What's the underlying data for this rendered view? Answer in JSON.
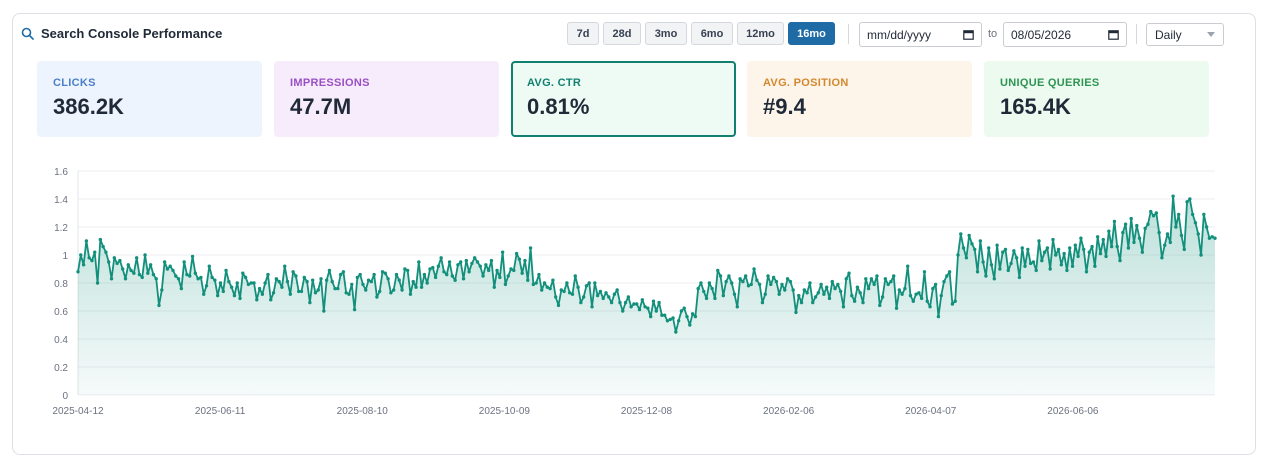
{
  "header": {
    "title": "Search Console Performance",
    "icon": "search-icon"
  },
  "ranges": [
    {
      "label": "7d",
      "active": false
    },
    {
      "label": "28d",
      "active": false
    },
    {
      "label": "3mo",
      "active": false
    },
    {
      "label": "6mo",
      "active": false
    },
    {
      "label": "12mo",
      "active": false
    },
    {
      "label": "16mo",
      "active": true
    }
  ],
  "date_from": {
    "placeholder": "mm/dd/yyyy"
  },
  "date_to_label": "to",
  "date_to": {
    "value": "08/05/2026"
  },
  "granularity": {
    "selected": "Daily"
  },
  "metrics": [
    {
      "label": "CLICKS",
      "value": "386.2K",
      "bg": "#eef4fd",
      "color": "#4a7fcb",
      "selected": false
    },
    {
      "label": "IMPRESSIONS",
      "value": "47.7M",
      "bg": "#f6ecfb",
      "color": "#9b4fc4",
      "selected": false
    },
    {
      "label": "AVG. CTR",
      "value": "0.81%",
      "bg": "#eefaf4",
      "color": "#12806f",
      "selected": true
    },
    {
      "label": "AVG. POSITION",
      "value": "#9.4",
      "bg": "#fdf4ea",
      "color": "#d2882d",
      "selected": false
    },
    {
      "label": "UNIQUE QUERIES",
      "value": "165.4K",
      "bg": "#ecfaf0",
      "color": "#2f9452",
      "selected": false
    }
  ],
  "chart_data": {
    "type": "area",
    "title": "",
    "xlabel": "",
    "ylabel": "",
    "x_start": "2025-04-12",
    "x_end": "2026-08-05",
    "ylim": [
      0,
      1.6
    ],
    "yticks": [
      0,
      0.2,
      0.4,
      0.6,
      0.8,
      1.0,
      1.2,
      1.4,
      1.6
    ],
    "ytick_labels": [
      "0",
      "0.2",
      "0.4",
      "0.6",
      "0.8",
      "1",
      "1.2",
      "1.4",
      "1.6"
    ],
    "xtick_labels": [
      "2025-04-12",
      "2025-06-11",
      "2025-08-10",
      "2025-10-09",
      "2025-12-08",
      "2026-02-06",
      "2026-04-07",
      "2026-06-06"
    ],
    "grid": true,
    "color": "#12907c",
    "values": [
      0.88,
      1.0,
      0.93,
      1.1,
      0.98,
      0.96,
      1.02,
      0.8,
      1.11,
      1.06,
      1.02,
      0.95,
      0.83,
      0.98,
      0.94,
      0.96,
      0.9,
      0.83,
      0.93,
      0.89,
      0.87,
      0.98,
      0.86,
      0.84,
      1.0,
      0.87,
      0.93,
      0.86,
      0.83,
      0.64,
      0.75,
      0.95,
      0.9,
      0.92,
      0.89,
      0.85,
      0.83,
      0.76,
      0.95,
      0.86,
      0.85,
      0.99,
      0.87,
      0.83,
      0.84,
      0.72,
      0.78,
      0.92,
      0.84,
      0.82,
      0.71,
      0.8,
      0.74,
      0.89,
      0.81,
      0.77,
      0.71,
      0.8,
      0.69,
      0.87,
      0.84,
      0.79,
      0.8,
      0.8,
      0.68,
      0.76,
      0.72,
      0.8,
      0.86,
      0.68,
      0.73,
      0.83,
      0.81,
      0.77,
      0.92,
      0.81,
      0.72,
      0.88,
      0.85,
      0.74,
      0.74,
      0.84,
      0.81,
      0.66,
      0.82,
      0.73,
      0.75,
      0.83,
      0.6,
      0.82,
      0.89,
      0.81,
      0.76,
      0.76,
      0.86,
      0.88,
      0.73,
      0.72,
      0.79,
      0.61,
      0.84,
      0.86,
      0.79,
      0.75,
      0.82,
      0.81,
      0.86,
      0.7,
      0.74,
      0.88,
      0.87,
      0.83,
      0.73,
      0.75,
      0.86,
      0.82,
      0.75,
      0.9,
      0.89,
      0.72,
      0.81,
      0.77,
      0.95,
      0.77,
      0.86,
      0.8,
      0.9,
      0.91,
      0.84,
      0.92,
      0.98,
      0.88,
      0.86,
      0.95,
      0.85,
      0.82,
      0.93,
      0.95,
      0.83,
      0.96,
      0.88,
      0.94,
      0.98,
      0.95,
      0.92,
      0.85,
      0.93,
      0.89,
      0.96,
      0.77,
      0.89,
      0.84,
      1.02,
      0.79,
      0.85,
      0.9,
      0.89,
      1.01,
      0.97,
      0.87,
      0.96,
      0.82,
      1.05,
      0.79,
      0.8,
      0.86,
      0.75,
      0.8,
      0.77,
      0.76,
      0.82,
      0.7,
      0.64,
      0.75,
      0.74,
      0.8,
      0.73,
      0.72,
      0.85,
      0.77,
      0.66,
      0.7,
      0.78,
      0.8,
      0.63,
      0.8,
      0.71,
      0.74,
      0.69,
      0.73,
      0.7,
      0.66,
      0.72,
      0.75,
      0.66,
      0.6,
      0.66,
      0.7,
      0.63,
      0.65,
      0.65,
      0.61,
      0.68,
      0.63,
      0.62,
      0.56,
      0.67,
      0.6,
      0.66,
      0.57,
      0.57,
      0.53,
      0.54,
      0.55,
      0.45,
      0.53,
      0.6,
      0.62,
      0.56,
      0.5,
      0.58,
      0.56,
      0.76,
      0.8,
      0.74,
      0.69,
      0.8,
      0.76,
      0.69,
      0.89,
      0.85,
      0.71,
      0.81,
      0.85,
      0.8,
      0.72,
      0.63,
      0.83,
      0.81,
      0.85,
      0.78,
      0.79,
      0.9,
      0.82,
      0.79,
      0.66,
      0.72,
      0.85,
      0.79,
      0.84,
      0.81,
      0.72,
      0.79,
      0.75,
      0.83,
      0.81,
      0.75,
      0.59,
      0.71,
      0.66,
      0.75,
      0.73,
      0.8,
      0.66,
      0.7,
      0.73,
      0.79,
      0.72,
      0.77,
      0.69,
      0.81,
      0.76,
      0.79,
      0.74,
      0.63,
      0.83,
      0.87,
      0.71,
      0.67,
      0.77,
      0.73,
      0.66,
      0.83,
      0.76,
      0.83,
      0.79,
      0.85,
      0.64,
      0.7,
      0.83,
      0.79,
      0.81,
      0.85,
      0.62,
      0.75,
      0.72,
      0.76,
      0.92,
      0.71,
      0.67,
      0.72,
      0.73,
      0.69,
      0.88,
      0.67,
      0.63,
      0.76,
      0.79,
      0.56,
      0.71,
      0.81,
      0.85,
      0.88,
      0.65,
      0.67,
      1.0,
      1.15,
      1.05,
      0.98,
      1.14,
      1.08,
      1.04,
      0.88,
      1.1,
      0.95,
      0.85,
      1.05,
      0.93,
      0.83,
      1.07,
      0.9,
      1.02,
      1.04,
      0.89,
      0.94,
      1.03,
      0.98,
      0.84,
      1.05,
      0.92,
      1.04,
      0.94,
      0.95,
      0.89,
      1.1,
      0.96,
      1.02,
      1.05,
      0.9,
      1.11,
      1.0,
      1.04,
      0.93,
      1.01,
      0.89,
      1.05,
      0.92,
      1.07,
      0.99,
      1.12,
      1.04,
      0.88,
      1.02,
      1.06,
      0.92,
      1.13,
      1.01,
      1.11,
      0.99,
      1.17,
      1.06,
      1.24,
      1.06,
      0.96,
      1.16,
      1.22,
      1.05,
      1.26,
      1.09,
      1.21,
      1.12,
      1.02,
      1.19,
      1.22,
      1.31,
      1.28,
      1.3,
      1.16,
      0.98,
      1.07,
      1.15,
      1.09,
      1.42,
      1.2,
      1.29,
      1.14,
      1.04,
      1.38,
      1.4,
      1.29,
      1.23,
      1.15,
      1.0,
      1.29,
      1.2,
      1.12,
      1.13,
      1.12
    ]
  }
}
